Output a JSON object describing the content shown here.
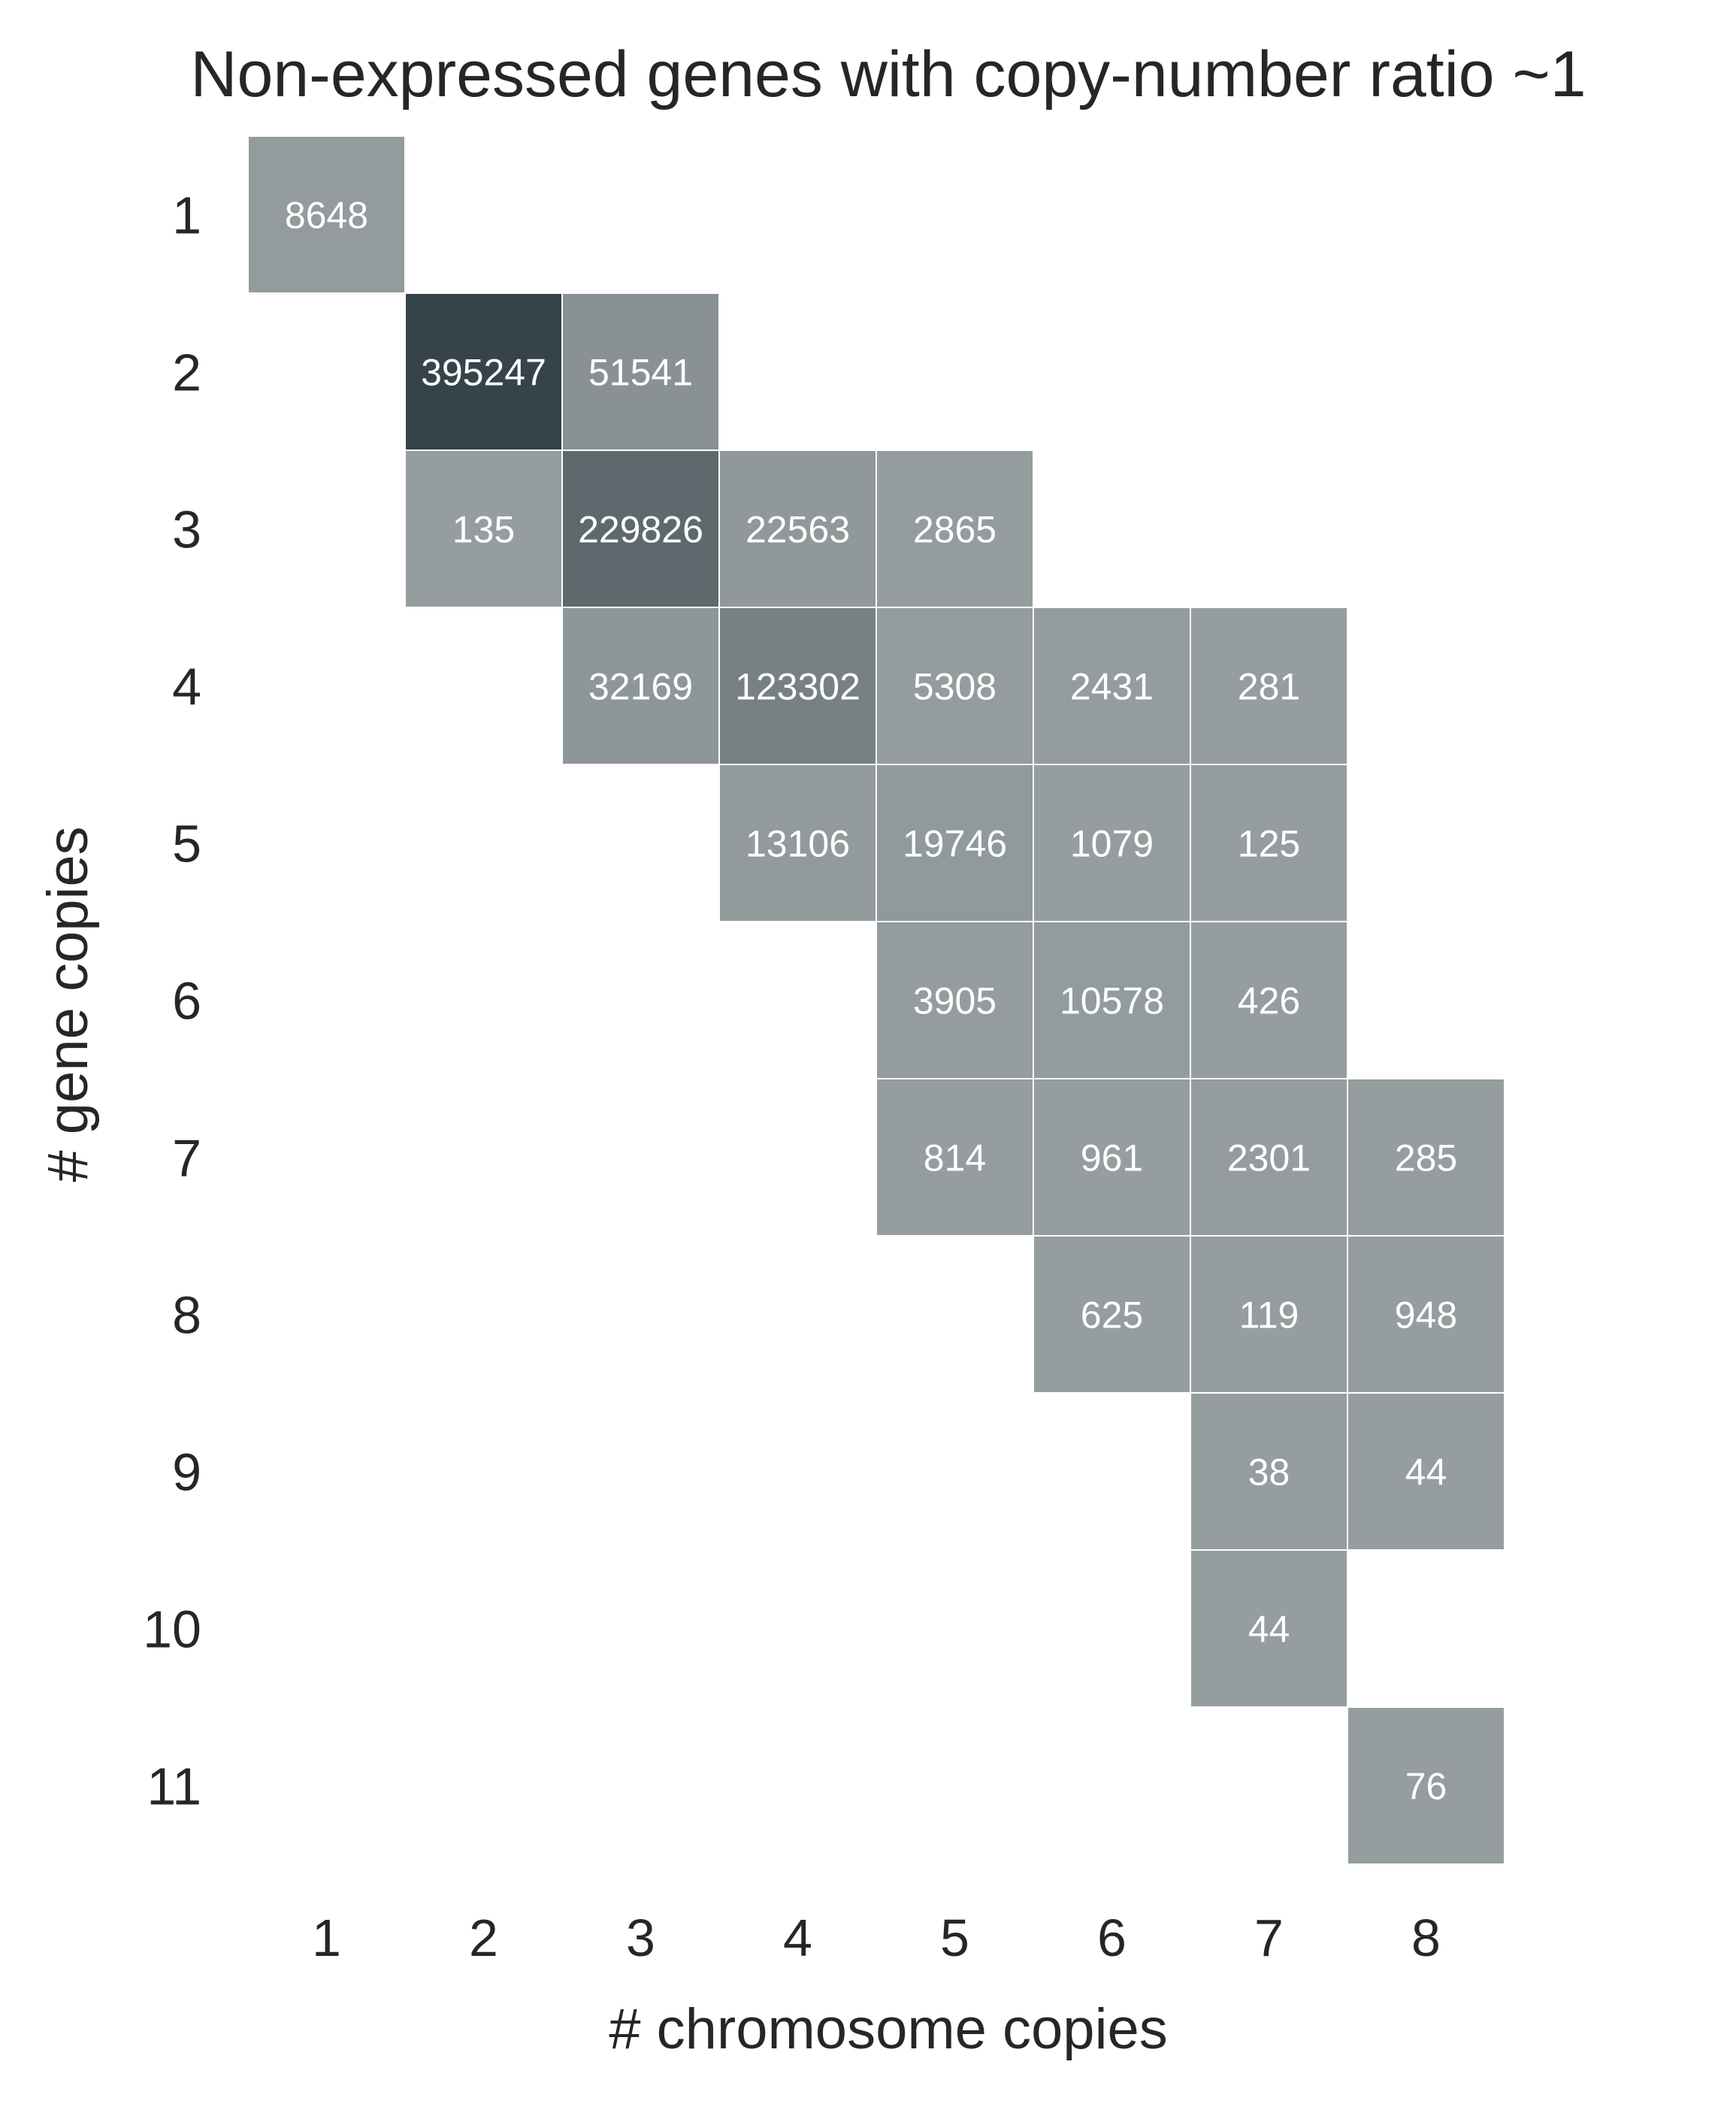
{
  "chart_data": {
    "type": "heatmap",
    "title": "Non-expressed genes with copy-number ratio ~1",
    "xlabel": "# chromosome copies",
    "ylabel": "# gene copies",
    "x_categories": [
      "1",
      "2",
      "3",
      "4",
      "5",
      "6",
      "7",
      "8"
    ],
    "y_categories": [
      "1",
      "2",
      "3",
      "4",
      "5",
      "6",
      "7",
      "8",
      "9",
      "10",
      "11"
    ],
    "cells": [
      {
        "x": "1",
        "y": "1",
        "value": 8648
      },
      {
        "x": "2",
        "y": "2",
        "value": 395247
      },
      {
        "x": "3",
        "y": "2",
        "value": 51541
      },
      {
        "x": "2",
        "y": "3",
        "value": 135
      },
      {
        "x": "3",
        "y": "3",
        "value": 229826
      },
      {
        "x": "4",
        "y": "3",
        "value": 22563
      },
      {
        "x": "5",
        "y": "3",
        "value": 2865
      },
      {
        "x": "3",
        "y": "4",
        "value": 32169
      },
      {
        "x": "4",
        "y": "4",
        "value": 123302
      },
      {
        "x": "5",
        "y": "4",
        "value": 5308
      },
      {
        "x": "6",
        "y": "4",
        "value": 2431
      },
      {
        "x": "7",
        "y": "4",
        "value": 281
      },
      {
        "x": "4",
        "y": "5",
        "value": 13106
      },
      {
        "x": "5",
        "y": "5",
        "value": 19746
      },
      {
        "x": "6",
        "y": "5",
        "value": 1079
      },
      {
        "x": "7",
        "y": "5",
        "value": 125
      },
      {
        "x": "5",
        "y": "6",
        "value": 3905
      },
      {
        "x": "6",
        "y": "6",
        "value": 10578
      },
      {
        "x": "7",
        "y": "6",
        "value": 426
      },
      {
        "x": "5",
        "y": "7",
        "value": 814
      },
      {
        "x": "6",
        "y": "7",
        "value": 961
      },
      {
        "x": "7",
        "y": "7",
        "value": 2301
      },
      {
        "x": "8",
        "y": "7",
        "value": 285
      },
      {
        "x": "6",
        "y": "8",
        "value": 625
      },
      {
        "x": "7",
        "y": "8",
        "value": 119
      },
      {
        "x": "8",
        "y": "8",
        "value": 948
      },
      {
        "x": "7",
        "y": "9",
        "value": 38
      },
      {
        "x": "8",
        "y": "9",
        "value": 44
      },
      {
        "x": "7",
        "y": "10",
        "value": 44
      },
      {
        "x": "8",
        "y": "11",
        "value": 76
      }
    ],
    "color_scale": {
      "low": "#959d9f",
      "high": "#36434a"
    },
    "grid": false,
    "legend": "none"
  }
}
